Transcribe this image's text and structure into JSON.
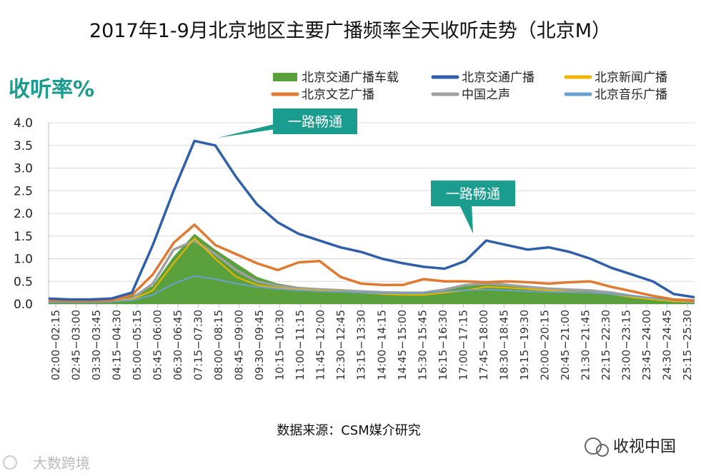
{
  "chart_data": {
    "type": "line",
    "title": "2017年1-9月北京地区主要广播频率全天收听走势（北京M）",
    "ylabel": "收听率%",
    "xlabel": "",
    "ylim": [
      0,
      4.0
    ],
    "yticks": [
      "4.0",
      "3.5",
      "3.0",
      "2.5",
      "2.0",
      "1.5",
      "1.0",
      "0.5",
      "0.0"
    ],
    "grid": true,
    "legend_position": "top-right",
    "xtick_labels": [
      "02:00−02:15",
      "02:45−03:00",
      "03:30−03:45",
      "04:15−04:30",
      "05:00−05:15",
      "05:45−06:00",
      "06:30−06:45",
      "07:15−07:30",
      "08:00−08:15",
      "08:45−09:00",
      "09:30−09:45",
      "10:15−10:30",
      "11:00−11:15",
      "11:45−12:00",
      "12:30−12:45",
      "13:15−13:30",
      "14:00−14:15",
      "14:45−15:00",
      "15:30−15:45",
      "16:15−16:30",
      "17:00−17:15",
      "17:45−18:00",
      "18:30−18:45",
      "19:15−19:30",
      "20:00−20:15",
      "20:45−21:00",
      "21:30−21:45",
      "22:15−22:30",
      "23:00−23:15",
      "23:45−24:00",
      "24:30−24:45",
      "25:15−25:30"
    ],
    "annotations": [
      "一路畅通",
      "一路畅通"
    ],
    "series": [
      {
        "name": "北京交通广播车载",
        "style": "area",
        "color": "#5aa03c",
        "values": [
          0.05,
          0.04,
          0.05,
          0.06,
          0.18,
          0.4,
          1.05,
          1.55,
          1.2,
          0.9,
          0.6,
          0.45,
          0.38,
          0.35,
          0.33,
          0.3,
          0.28,
          0.26,
          0.25,
          0.3,
          0.4,
          0.5,
          0.45,
          0.38,
          0.36,
          0.34,
          0.32,
          0.28,
          0.2,
          0.12,
          0.06,
          0.04
        ]
      },
      {
        "name": "北京交通广播",
        "style": "line",
        "color": "#2e5fa8",
        "values": [
          0.12,
          0.1,
          0.1,
          0.12,
          0.25,
          1.3,
          2.5,
          3.6,
          3.5,
          2.8,
          2.2,
          1.8,
          1.55,
          1.4,
          1.25,
          1.15,
          1.0,
          0.9,
          0.82,
          0.78,
          0.95,
          1.4,
          1.3,
          1.2,
          1.25,
          1.15,
          1.0,
          0.8,
          0.65,
          0.5,
          0.22,
          0.15
        ]
      },
      {
        "name": "北京新闻广播",
        "style": "line",
        "color": "#f0b400",
        "values": [
          0.05,
          0.05,
          0.06,
          0.06,
          0.1,
          0.3,
          0.9,
          1.45,
          1.0,
          0.6,
          0.42,
          0.35,
          0.32,
          0.3,
          0.28,
          0.25,
          0.22,
          0.2,
          0.2,
          0.25,
          0.3,
          0.38,
          0.36,
          0.33,
          0.3,
          0.27,
          0.25,
          0.22,
          0.15,
          0.1,
          0.06,
          0.05
        ]
      },
      {
        "name": "北京文艺广播",
        "style": "line",
        "color": "#e07a30",
        "values": [
          0.08,
          0.07,
          0.07,
          0.08,
          0.2,
          0.65,
          1.35,
          1.75,
          1.3,
          1.1,
          0.9,
          0.75,
          0.92,
          0.95,
          0.6,
          0.45,
          0.42,
          0.42,
          0.55,
          0.5,
          0.5,
          0.48,
          0.5,
          0.48,
          0.45,
          0.48,
          0.5,
          0.38,
          0.28,
          0.18,
          0.1,
          0.08
        ]
      },
      {
        "name": "中国之声",
        "style": "line",
        "color": "#a0a0a0",
        "values": [
          0.05,
          0.05,
          0.05,
          0.06,
          0.12,
          0.45,
          1.2,
          1.4,
          1.1,
          0.75,
          0.5,
          0.4,
          0.35,
          0.32,
          0.3,
          0.28,
          0.26,
          0.25,
          0.25,
          0.32,
          0.42,
          0.45,
          0.42,
          0.38,
          0.34,
          0.32,
          0.3,
          0.25,
          0.18,
          0.12,
          0.07,
          0.05
        ]
      },
      {
        "name": "北京音乐广播",
        "style": "line",
        "color": "#6aa0d0",
        "values": [
          0.04,
          0.04,
          0.04,
          0.05,
          0.08,
          0.2,
          0.45,
          0.62,
          0.55,
          0.45,
          0.38,
          0.33,
          0.3,
          0.28,
          0.27,
          0.25,
          0.24,
          0.24,
          0.25,
          0.28,
          0.3,
          0.32,
          0.3,
          0.28,
          0.27,
          0.26,
          0.25,
          0.22,
          0.18,
          0.13,
          0.08,
          0.06
        ]
      }
    ]
  },
  "footer": {
    "source": "数据来源：CSM媒介研究",
    "watermark_right": "收视中国",
    "watermark_left": "大数跨境"
  }
}
